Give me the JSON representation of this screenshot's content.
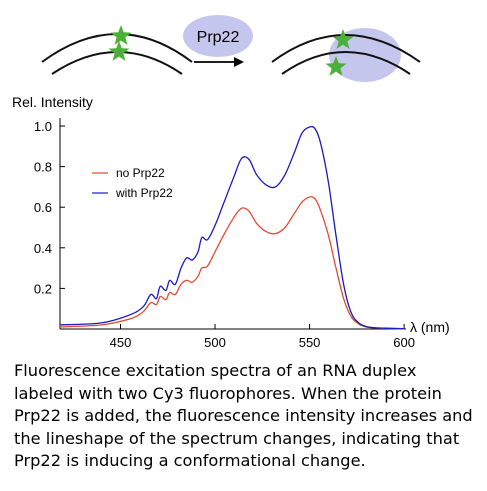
{
  "schematic": {
    "protein_label": "Prp22",
    "protein_color": "#c5c6ee",
    "star_color": "#4caf3a",
    "arc_color": "#111111"
  },
  "chart_data": {
    "type": "line",
    "title": "",
    "ylabel": "Rel. Intensity",
    "xlabel": "λ (nm)",
    "xlim": [
      418,
      601
    ],
    "ylim": [
      0,
      1.0
    ],
    "xticks": [
      450,
      500,
      550,
      600
    ],
    "yticks": [
      0.2,
      0.4,
      0.6,
      0.8,
      1.0
    ],
    "xtick_labels": [
      "450",
      "500",
      "550",
      "600"
    ],
    "ytick_labels": [
      "0.2",
      "0.4",
      "0.6",
      "0.8",
      "1.0"
    ],
    "grid": false,
    "legend_position": "upper-left",
    "series": [
      {
        "name": "no Prp22",
        "color": "#e24a33",
        "x": [
          418,
          440,
          455,
          462,
          466,
          469,
          471,
          474,
          476,
          479,
          482,
          485,
          488,
          491,
          493,
          496,
          500,
          505,
          510,
          514,
          518,
          522,
          527,
          532,
          537,
          542,
          546,
          550,
          553,
          556,
          560,
          564,
          568,
          572,
          576,
          580,
          585,
          590,
          595,
          600
        ],
        "y": [
          0.01,
          0.02,
          0.05,
          0.085,
          0.13,
          0.12,
          0.16,
          0.145,
          0.18,
          0.17,
          0.22,
          0.24,
          0.23,
          0.26,
          0.3,
          0.31,
          0.38,
          0.47,
          0.55,
          0.595,
          0.58,
          0.52,
          0.48,
          0.47,
          0.5,
          0.57,
          0.625,
          0.65,
          0.64,
          0.58,
          0.46,
          0.3,
          0.15,
          0.06,
          0.025,
          0.01,
          0.005,
          0.003,
          0.002,
          0.001
        ]
      },
      {
        "name": "with Prp22",
        "color": "#1a1abf",
        "x": [
          418,
          440,
          455,
          462,
          466,
          469,
          471,
          474,
          476,
          479,
          482,
          485,
          488,
          491,
          493,
          496,
          500,
          505,
          510,
          514,
          518,
          522,
          527,
          532,
          537,
          542,
          546,
          550,
          553,
          556,
          560,
          564,
          568,
          572,
          576,
          580,
          585,
          590,
          595,
          600
        ],
        "y": [
          0.02,
          0.03,
          0.07,
          0.11,
          0.17,
          0.15,
          0.21,
          0.19,
          0.24,
          0.22,
          0.3,
          0.35,
          0.34,
          0.38,
          0.45,
          0.44,
          0.51,
          0.63,
          0.75,
          0.84,
          0.835,
          0.76,
          0.71,
          0.7,
          0.76,
          0.87,
          0.965,
          0.995,
          0.985,
          0.91,
          0.72,
          0.46,
          0.22,
          0.08,
          0.03,
          0.012,
          0.006,
          0.004,
          0.003,
          0.002
        ]
      }
    ]
  },
  "caption": "Fluorescence excitation spectra of an RNA duplex labeled with two Cy3 fluorophores. When the protein Prp22 is added, the fluorescence intensity increases and the lineshape of the spectrum changes, indicating that Prp22 is inducing a conformational change."
}
